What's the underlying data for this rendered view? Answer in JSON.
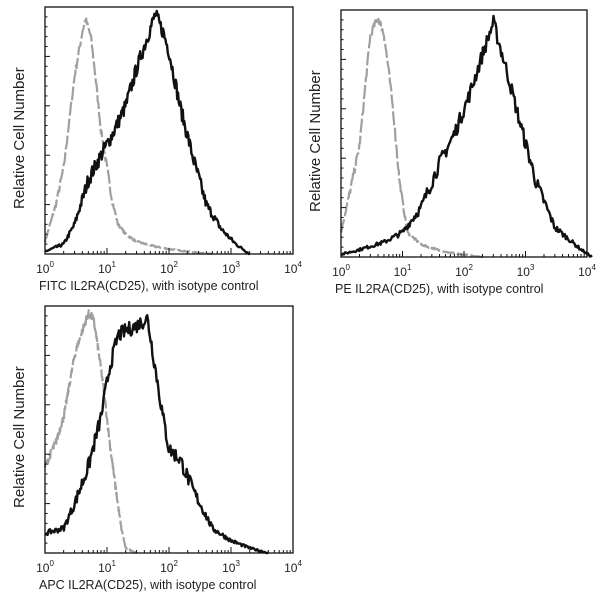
{
  "chart_data": [
    {
      "type": "line",
      "ylabel": "Relative Cell Number",
      "xlabel": "FITC IL2RA(CD25), with isotype control",
      "x_scale": "log",
      "xlim": [
        1,
        10000
      ],
      "ylim": [
        0,
        1
      ],
      "x_ticks": [
        {
          "base": "10",
          "exp": "0"
        },
        {
          "base": "10",
          "exp": "1"
        },
        {
          "base": "10",
          "exp": "2"
        },
        {
          "base": "10",
          "exp": "3"
        },
        {
          "base": "10",
          "exp": "4"
        }
      ],
      "series": [
        {
          "style": "isotype",
          "color": "#a0a0a0",
          "dashed": true,
          "x": [
            1,
            1.5,
            2,
            3,
            4,
            4.5,
            5.5,
            6.5,
            8,
            10,
            12,
            15,
            20,
            30,
            60,
            100,
            200,
            300,
            500
          ],
          "y": [
            0.05,
            0.2,
            0.35,
            0.72,
            0.9,
            0.95,
            0.88,
            0.72,
            0.5,
            0.35,
            0.22,
            0.12,
            0.08,
            0.05,
            0.03,
            0.02,
            0.01,
            0.005,
            0
          ]
        },
        {
          "style": "sample",
          "color": "#111111",
          "dashed": false,
          "x": [
            1,
            2,
            3,
            5,
            8,
            12,
            20,
            30,
            45,
            60,
            80,
            100,
            150,
            250,
            400,
            700,
            1200,
            2000
          ],
          "y": [
            0.01,
            0.04,
            0.12,
            0.3,
            0.4,
            0.48,
            0.6,
            0.75,
            0.88,
            0.97,
            0.9,
            0.82,
            0.6,
            0.38,
            0.2,
            0.1,
            0.04,
            0
          ]
        }
      ]
    },
    {
      "type": "line",
      "ylabel": "Relative Cell Number",
      "xlabel": "PE IL2RA(CD25), with isotype control",
      "x_scale": "log",
      "xlim": [
        1,
        10000
      ],
      "ylim": [
        0,
        1
      ],
      "x_ticks": [
        {
          "base": "10",
          "exp": "0"
        },
        {
          "base": "10",
          "exp": "1"
        },
        {
          "base": "10",
          "exp": "2"
        },
        {
          "base": "10",
          "exp": "3"
        },
        {
          "base": "10",
          "exp": "4"
        }
      ],
      "series": [
        {
          "style": "isotype",
          "color": "#a0a0a0",
          "dashed": true,
          "x": [
            1,
            1.5,
            2,
            2.5,
            3,
            4,
            5,
            6,
            7,
            9,
            12,
            20,
            50,
            100,
            200
          ],
          "y": [
            0.1,
            0.3,
            0.45,
            0.7,
            0.9,
            0.97,
            0.9,
            0.75,
            0.6,
            0.3,
            0.1,
            0.05,
            0.02,
            0.01,
            0
          ]
        },
        {
          "style": "sample",
          "color": "#111111",
          "dashed": false,
          "x": [
            1,
            2,
            5,
            10,
            20,
            40,
            70,
            120,
            200,
            300,
            500,
            800,
            1500,
            3000,
            8000,
            12000
          ],
          "y": [
            0.01,
            0.03,
            0.06,
            0.1,
            0.2,
            0.38,
            0.5,
            0.65,
            0.82,
            0.95,
            0.75,
            0.55,
            0.3,
            0.12,
            0.03,
            0
          ]
        }
      ]
    },
    {
      "type": "line",
      "ylabel": "Relative Cell Number",
      "xlabel": "APC IL2RA(CD25), with isotype control",
      "x_scale": "log",
      "xlim": [
        1,
        10000
      ],
      "ylim": [
        0,
        1
      ],
      "x_ticks": [
        {
          "base": "10",
          "exp": "0"
        },
        {
          "base": "10",
          "exp": "1"
        },
        {
          "base": "10",
          "exp": "2"
        },
        {
          "base": "10",
          "exp": "3"
        },
        {
          "base": "10",
          "exp": "4"
        }
      ],
      "series": [
        {
          "style": "isotype",
          "color": "#a0a0a0",
          "dashed": true,
          "x": [
            1,
            1.5,
            2,
            3,
            4,
            5,
            6,
            7,
            9,
            11,
            14,
            17,
            20,
            30
          ],
          "y": [
            0.35,
            0.45,
            0.55,
            0.8,
            0.9,
            0.97,
            0.95,
            0.85,
            0.65,
            0.45,
            0.25,
            0.1,
            0.02,
            0
          ]
        },
        {
          "style": "sample",
          "color": "#111111",
          "dashed": false,
          "x": [
            1,
            2,
            3,
            5,
            8,
            11,
            15,
            20,
            30,
            45,
            60,
            80,
            100,
            150,
            250,
            500,
            1000,
            2000,
            4000
          ],
          "y": [
            0.08,
            0.1,
            0.2,
            0.35,
            0.55,
            0.75,
            0.88,
            0.9,
            0.92,
            0.95,
            0.75,
            0.55,
            0.42,
            0.38,
            0.25,
            0.1,
            0.05,
            0.02,
            0
          ]
        }
      ]
    }
  ]
}
